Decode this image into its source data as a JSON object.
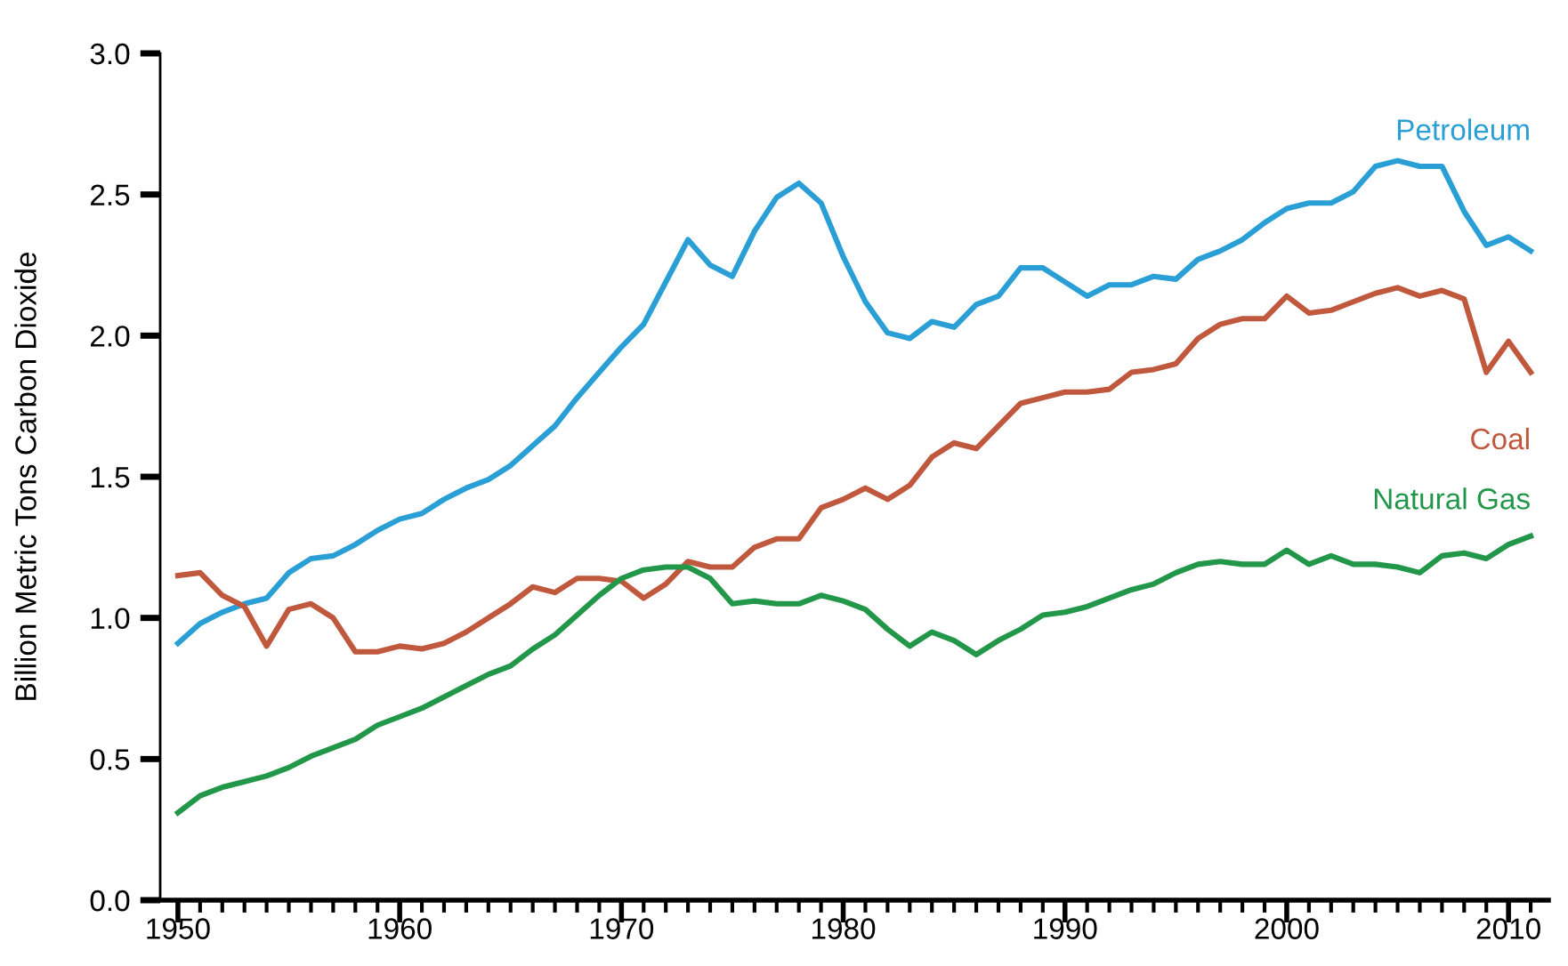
{
  "chart_data": {
    "type": "line",
    "ylabel": "Billion Metric Tons Carbon Dioxide",
    "x": [
      1950,
      1951,
      1952,
      1953,
      1954,
      1955,
      1956,
      1957,
      1958,
      1959,
      1960,
      1961,
      1962,
      1963,
      1964,
      1965,
      1966,
      1967,
      1968,
      1969,
      1970,
      1971,
      1972,
      1973,
      1974,
      1975,
      1976,
      1977,
      1978,
      1979,
      1980,
      1981,
      1982,
      1983,
      1984,
      1985,
      1986,
      1987,
      1988,
      1989,
      1990,
      1991,
      1992,
      1993,
      1994,
      1995,
      1996,
      1997,
      1998,
      1999,
      2000,
      2001,
      2002,
      2003,
      2004,
      2005,
      2006,
      2007,
      2008,
      2009,
      2010,
      2011
    ],
    "series": [
      {
        "name": "Petroleum",
        "color": "#2a9fd6",
        "values": [
          0.91,
          0.98,
          1.02,
          1.05,
          1.07,
          1.16,
          1.21,
          1.22,
          1.26,
          1.31,
          1.35,
          1.37,
          1.42,
          1.46,
          1.49,
          1.54,
          1.61,
          1.68,
          1.78,
          1.87,
          1.96,
          2.04,
          2.19,
          2.34,
          2.25,
          2.21,
          2.37,
          2.49,
          2.54,
          2.47,
          2.28,
          2.12,
          2.01,
          1.99,
          2.05,
          2.03,
          2.11,
          2.14,
          2.24,
          2.24,
          2.19,
          2.14,
          2.18,
          2.18,
          2.21,
          2.2,
          2.27,
          2.3,
          2.34,
          2.4,
          2.45,
          2.47,
          2.47,
          2.51,
          2.6,
          2.62,
          2.6,
          2.6,
          2.44,
          2.32,
          2.35,
          2.3
        ]
      },
      {
        "name": "Coal",
        "color": "#c0583d",
        "values": [
          1.15,
          1.16,
          1.08,
          1.04,
          0.9,
          1.03,
          1.05,
          1.0,
          0.88,
          0.88,
          0.9,
          0.89,
          0.91,
          0.95,
          1.0,
          1.05,
          1.11,
          1.09,
          1.14,
          1.14,
          1.13,
          1.07,
          1.12,
          1.2,
          1.18,
          1.18,
          1.25,
          1.28,
          1.28,
          1.39,
          1.42,
          1.46,
          1.42,
          1.47,
          1.57,
          1.62,
          1.6,
          1.68,
          1.76,
          1.78,
          1.8,
          1.8,
          1.81,
          1.87,
          1.88,
          1.9,
          1.99,
          2.04,
          2.06,
          2.06,
          2.14,
          2.08,
          2.09,
          2.12,
          2.15,
          2.17,
          2.14,
          2.16,
          2.13,
          1.87,
          1.98,
          1.87
        ]
      },
      {
        "name": "Natural Gas",
        "color": "#22974a",
        "values": [
          0.31,
          0.37,
          0.4,
          0.42,
          0.44,
          0.47,
          0.51,
          0.54,
          0.57,
          0.62,
          0.65,
          0.68,
          0.72,
          0.76,
          0.8,
          0.83,
          0.89,
          0.94,
          1.01,
          1.08,
          1.14,
          1.17,
          1.18,
          1.18,
          1.14,
          1.05,
          1.06,
          1.05,
          1.05,
          1.08,
          1.06,
          1.03,
          0.96,
          0.9,
          0.95,
          0.92,
          0.87,
          0.92,
          0.96,
          1.01,
          1.02,
          1.04,
          1.07,
          1.1,
          1.12,
          1.16,
          1.19,
          1.2,
          1.19,
          1.19,
          1.24,
          1.19,
          1.22,
          1.19,
          1.19,
          1.18,
          1.16,
          1.22,
          1.23,
          1.21,
          1.26,
          1.29
        ]
      }
    ],
    "xlim": [
      1949.2,
      2011.8
    ],
    "ylim": [
      0,
      3.0
    ],
    "xticks": [
      1950,
      {
        "value": 1951,
        "label": null
      },
      {
        "value": 1952,
        "label": null
      },
      {
        "value": 1953,
        "label": null
      },
      {
        "value": 1954,
        "label": null
      },
      {
        "value": 1955,
        "label": null
      },
      {
        "value": 1956,
        "label": null
      },
      {
        "value": 1957,
        "label": null
      },
      {
        "value": 1958,
        "label": null
      },
      {
        "value": 1959,
        "label": null
      },
      1960,
      {
        "value": 1961,
        "label": null
      },
      {
        "value": 1962,
        "label": null
      },
      {
        "value": 1963,
        "label": null
      },
      {
        "value": 1964,
        "label": null
      },
      {
        "value": 1965,
        "label": null
      },
      {
        "value": 1966,
        "label": null
      },
      {
        "value": 1967,
        "label": null
      },
      {
        "value": 1968,
        "label": null
      },
      {
        "value": 1969,
        "label": null
      },
      1970,
      {
        "value": 1971,
        "label": null
      },
      {
        "value": 1972,
        "label": null
      },
      {
        "value": 1973,
        "label": null
      },
      {
        "value": 1974,
        "label": null
      },
      {
        "value": 1975,
        "label": null
      },
      {
        "value": 1976,
        "label": null
      },
      {
        "value": 1977,
        "label": null
      },
      {
        "value": 1978,
        "label": null
      },
      {
        "value": 1979,
        "label": null
      },
      1980,
      {
        "value": 1981,
        "label": null
      },
      {
        "value": 1982,
        "label": null
      },
      {
        "value": 1983,
        "label": null
      },
      {
        "value": 1984,
        "label": null
      },
      {
        "value": 1985,
        "label": null
      },
      {
        "value": 1986,
        "label": null
      },
      {
        "value": 1987,
        "label": null
      },
      {
        "value": 1988,
        "label": null
      },
      {
        "value": 1989,
        "label": null
      },
      1990,
      {
        "value": 1991,
        "label": null
      },
      {
        "value": 1992,
        "label": null
      },
      {
        "value": 1993,
        "label": null
      },
      {
        "value": 1994,
        "label": null
      },
      {
        "value": 1995,
        "label": null
      },
      {
        "value": 1996,
        "label": null
      },
      {
        "value": 1997,
        "label": null
      },
      {
        "value": 1998,
        "label": null
      },
      {
        "value": 1999,
        "label": null
      },
      2000,
      {
        "value": 2001,
        "label": null
      },
      {
        "value": 2002,
        "label": null
      },
      {
        "value": 2003,
        "label": null
      },
      {
        "value": 2004,
        "label": null
      },
      {
        "value": 2005,
        "label": null
      },
      {
        "value": 2006,
        "label": null
      },
      {
        "value": 2007,
        "label": null
      },
      {
        "value": 2008,
        "label": null
      },
      {
        "value": 2009,
        "label": null
      },
      2010,
      {
        "value": 2011,
        "label": null
      }
    ],
    "yticks": [
      {
        "value": 0,
        "label": "0.0"
      },
      0.5,
      {
        "value": 1,
        "label": "1.0"
      },
      1.5,
      {
        "value": 2,
        "label": "2.0"
      },
      2.5,
      {
        "value": 3,
        "label": "3.0"
      }
    ],
    "grid": false,
    "legend": false,
    "marker": "none",
    "line_style": "solid"
  }
}
